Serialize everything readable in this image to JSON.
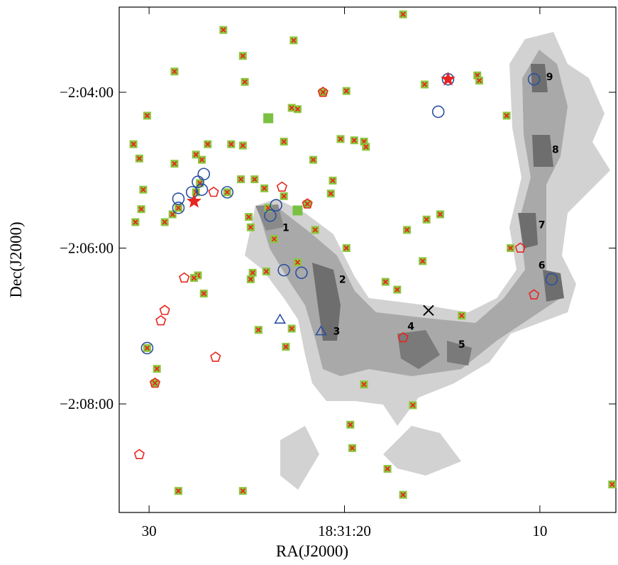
{
  "chart_data": {
    "type": "scatter",
    "x_label": "RA(J2000)",
    "y_label": "Dec(J2000)",
    "xlim": [
      31.53,
      6.11
    ],
    "ylim": [
      -7763.6,
      -7374.4
    ],
    "xticks": [
      30,
      {
        "value": 20,
        "label": "18:31:20"
      },
      10
    ],
    "yticks": [
      {
        "value": -7440,
        "label": "−2:04:00"
      },
      {
        "value": -7560,
        "label": "−2:06:00"
      },
      {
        "value": -7680,
        "label": "−2:08:00"
      }
    ],
    "series": [
      {
        "marker": "square-x",
        "color": "#8cc63f",
        "cross_color": "#e8251f",
        "x": [
          17.0,
          26.2,
          22.6,
          25.2,
          28.7,
          25.1,
          19.9,
          15.9,
          13.2,
          13.1,
          30.1,
          22.7,
          22.4,
          11.7,
          30.8,
          30.5,
          28.7,
          27.6,
          27.0,
          27.3,
          25.8,
          25.2,
          23.1,
          20.2,
          19.5,
          19.0,
          18.9,
          21.6,
          20.6,
          25.3,
          24.6,
          30.3,
          26.0,
          24.1,
          23.1,
          20.7,
          30.4,
          28.8,
          28.5,
          29.2,
          30.7,
          24.9,
          23.9,
          21.9,
          24.8,
          16.8,
          15.8,
          15.1,
          21.5,
          23.6,
          19.9,
          22.4,
          24.7,
          24.8,
          24.0,
          27.5,
          27.7,
          27.2,
          17.9,
          17.3,
          16.0,
          14.0,
          22.7,
          24.4,
          23.0,
          30.1,
          29.6,
          29.7,
          19.0,
          16.5,
          19.7,
          19.6,
          17.8,
          28.5,
          25.2,
          17.0,
          6.3,
          11.5,
          21.1,
          27.4,
          27.6
        ],
        "values": [
          -7380,
          -7392,
          -7400,
          -7412,
          -7424,
          -7432,
          -7439,
          -7434,
          -7427,
          -7431,
          -7458,
          -7452,
          -7453,
          -7458,
          -7480,
          -7491,
          -7495,
          -7488,
          -7480,
          -7492,
          -7480,
          -7481,
          -7478,
          -7476,
          -7477,
          -7478,
          -7482,
          -7492,
          -7508,
          -7507,
          -7507,
          -7515,
          -7517,
          -7514,
          -7520,
          -7518,
          -7530,
          -7534,
          -7529,
          -7540,
          -7540,
          -7536,
          -7529,
          -7526,
          -7544,
          -7546,
          -7538,
          -7534,
          -7546,
          -7553,
          -7560,
          -7571,
          -7579,
          -7584,
          -7578,
          -7581,
          -7583,
          -7595,
          -7586,
          -7592,
          -7570,
          -7612,
          -7622,
          -7623,
          -7636,
          -7637,
          -7653,
          -7664,
          -7665,
          -7681,
          -7696,
          -7714,
          -7730,
          -7747,
          -7747,
          -7750,
          -7742,
          -7560,
          -7440,
          -7510,
          -7517
        ]
      },
      {
        "marker": "filled-square",
        "color": "#7ac143",
        "x": [
          23.9,
          22.4
        ],
        "values": [
          -7460,
          -7531
        ]
      },
      {
        "marker": "circle",
        "color": "#2b4fa0",
        "x": [
          30.1,
          28.5,
          28.5,
          27.8,
          27.5,
          27.2,
          27.3,
          26.0,
          23.5,
          23.8,
          23.1,
          22.2,
          15.2,
          14.7,
          10.3,
          9.4
        ],
        "values": [
          -7637,
          -7522,
          -7529,
          -7517,
          -7509,
          -7503,
          -7515,
          -7517,
          -7527,
          -7535,
          -7577,
          -7579,
          -7455,
          -7430,
          -7430,
          -7584
        ]
      },
      {
        "marker": "pentagon",
        "color": "#e8251f",
        "x": [
          23.2,
          26.7,
          21.9,
          21.1,
          28.2,
          29.2,
          29.4,
          26.6,
          30.5,
          17.0,
          11.0,
          10.3,
          29.7
        ],
        "values": [
          -7513,
          -7517,
          -7526,
          -7440,
          -7583,
          -7608,
          -7616,
          -7644,
          -7719,
          -7629,
          -7560,
          -7596,
          -7664
        ]
      },
      {
        "marker": "triangle",
        "color": "#2b4fa0",
        "x": [
          23.3,
          21.2
        ],
        "values": [
          -7615,
          -7624
        ]
      },
      {
        "marker": "star",
        "color": "#e8251f",
        "x": [
          27.7,
          14.7
        ],
        "values": [
          -7524,
          -7430
        ]
      },
      {
        "marker": "cross",
        "color": "#000000",
        "x": [
          15.7
        ],
        "values": [
          -7608
        ]
      }
    ],
    "annotations": [
      {
        "text": "1",
        "x": 23.0,
        "y": -7544
      },
      {
        "text": "2",
        "x": 20.1,
        "y": -7584
      },
      {
        "text": "3",
        "x": 20.4,
        "y": -7624
      },
      {
        "text": "4",
        "x": 16.6,
        "y": -7620
      },
      {
        "text": "5",
        "x": 14.0,
        "y": -7634
      },
      {
        "text": "6",
        "x": 9.9,
        "y": -7573
      },
      {
        "text": "7",
        "x": 9.9,
        "y": -7542
      },
      {
        "text": "8",
        "x": 9.2,
        "y": -7484
      },
      {
        "text": "9",
        "x": 9.5,
        "y": -7428
      }
    ]
  }
}
